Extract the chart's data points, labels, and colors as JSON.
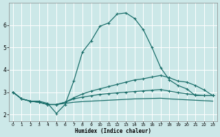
{
  "xlabel": "Humidex (Indice chaleur)",
  "bg_color": "#cce8e8",
  "line_color": "#1a6e6a",
  "xlim": [
    -0.5,
    23.5
  ],
  "ylim": [
    1.7,
    7.0
  ],
  "xticks": [
    0,
    1,
    2,
    3,
    4,
    5,
    6,
    7,
    8,
    9,
    10,
    11,
    12,
    13,
    14,
    15,
    16,
    17,
    18,
    19,
    20,
    21,
    22,
    23
  ],
  "yticks": [
    2,
    3,
    4,
    5,
    6
  ],
  "curve1_x": [
    0,
    1,
    2,
    3,
    4,
    5,
    6,
    7,
    8,
    9,
    10,
    11,
    12,
    13,
    14,
    15,
    16,
    17,
    18,
    19,
    20,
    21,
    22,
    23
  ],
  "curve1_y": [
    3.0,
    2.7,
    2.6,
    2.6,
    2.5,
    2.05,
    2.45,
    3.5,
    4.8,
    5.3,
    5.95,
    6.1,
    6.5,
    6.55,
    6.3,
    5.8,
    5.0,
    4.1,
    3.55,
    3.3,
    3.15,
    2.85,
    2.85,
    2.85
  ],
  "curve2_x": [
    0,
    1,
    2,
    3,
    4,
    5,
    6,
    7,
    8,
    9,
    10,
    11,
    12,
    13,
    14,
    15,
    16,
    17,
    18,
    19,
    20,
    21,
    22,
    23
  ],
  "curve2_y": [
    3.0,
    2.7,
    2.6,
    2.55,
    2.45,
    2.45,
    2.55,
    2.75,
    2.92,
    3.05,
    3.15,
    3.25,
    3.35,
    3.45,
    3.55,
    3.6,
    3.68,
    3.75,
    3.65,
    3.5,
    3.45,
    3.3,
    3.1,
    2.85
  ],
  "curve3_x": [
    0,
    1,
    2,
    3,
    4,
    5,
    6,
    7,
    8,
    9,
    10,
    11,
    12,
    13,
    14,
    15,
    16,
    17,
    18,
    19,
    20,
    21,
    22,
    23
  ],
  "curve3_y": [
    3.0,
    2.7,
    2.6,
    2.55,
    2.45,
    2.45,
    2.55,
    2.7,
    2.78,
    2.84,
    2.9,
    2.94,
    2.97,
    3.0,
    3.03,
    3.06,
    3.09,
    3.12,
    3.05,
    2.98,
    2.93,
    2.88,
    2.85,
    2.85
  ],
  "curve4_x": [
    0,
    1,
    2,
    3,
    4,
    5,
    6,
    7,
    8,
    9,
    10,
    11,
    12,
    13,
    14,
    15,
    16,
    17,
    18,
    19,
    20,
    21,
    22,
    23
  ],
  "curve4_y": [
    3.0,
    2.7,
    2.6,
    2.55,
    2.45,
    2.45,
    2.5,
    2.55,
    2.58,
    2.6,
    2.62,
    2.64,
    2.66,
    2.68,
    2.7,
    2.71,
    2.72,
    2.73,
    2.7,
    2.68,
    2.66,
    2.64,
    2.62,
    2.6
  ]
}
